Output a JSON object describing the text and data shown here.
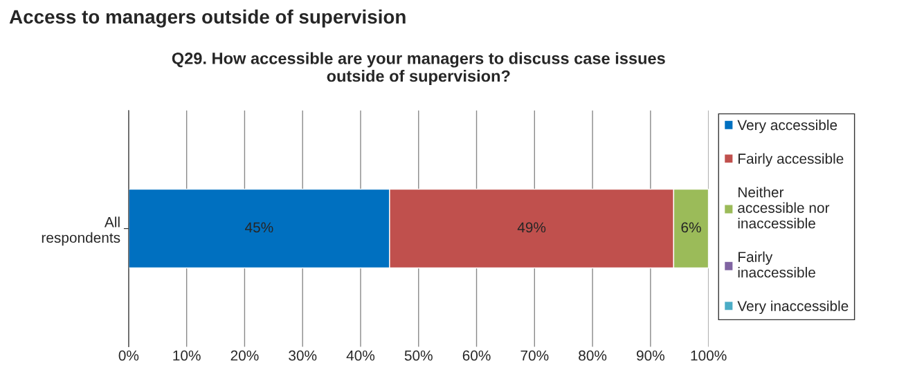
{
  "chart_data": {
    "type": "bar",
    "orientation": "horizontal",
    "stacked": true,
    "title": "Q29. How accessible are your managers to discuss case issues\noutside of supervision?",
    "annotations": [
      "Access to managers outside of supervision"
    ],
    "categories": [
      "All\nrespondents"
    ],
    "series": [
      {
        "name": "Very accessible",
        "color": "#0070c0",
        "values": [
          45
        ],
        "value_labels": [
          "45%"
        ]
      },
      {
        "name": "Fairly accessible",
        "color": "#c0504d",
        "values": [
          49
        ],
        "value_labels": [
          "49%"
        ]
      },
      {
        "name": "Neither\naccessible nor\ninaccessible",
        "color": "#9bbb59",
        "values": [
          6
        ],
        "value_labels": [
          "6%"
        ]
      },
      {
        "name": "Fairly\ninaccessible",
        "color": "#8064a2",
        "values": [
          0
        ],
        "value_labels": [
          null
        ]
      },
      {
        "name": "Very inaccessible",
        "color": "#4bacc6",
        "values": [
          0
        ],
        "value_labels": [
          null
        ]
      }
    ],
    "xlim": [
      0,
      100
    ],
    "xticks": [
      {
        "value": 0,
        "label": "0%"
      },
      {
        "value": 10,
        "label": "10%"
      },
      {
        "value": 20,
        "label": "20%"
      },
      {
        "value": 30,
        "label": "30%"
      },
      {
        "value": 40,
        "label": "40%"
      },
      {
        "value": 50,
        "label": "50%"
      },
      {
        "value": 60,
        "label": "60%"
      },
      {
        "value": 70,
        "label": "70%"
      },
      {
        "value": 80,
        "label": "80%"
      },
      {
        "value": 90,
        "label": "90%"
      },
      {
        "value": 100,
        "label": "100%"
      }
    ],
    "grid": "x",
    "legend": "right"
  }
}
